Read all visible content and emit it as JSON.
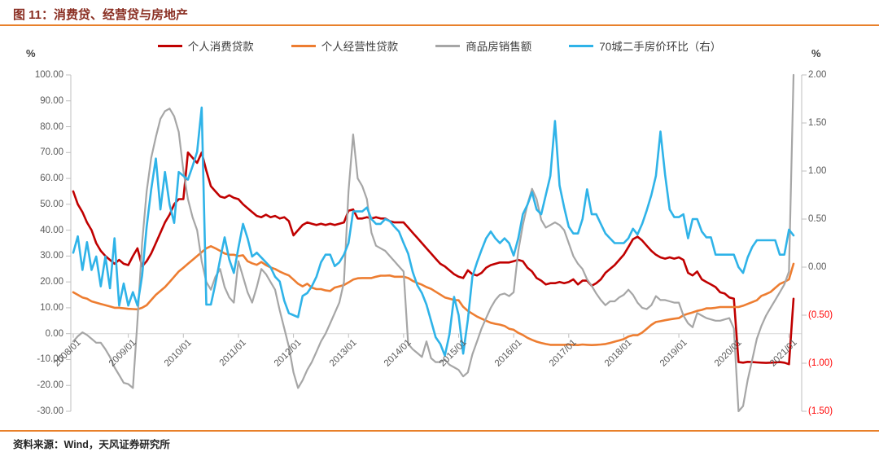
{
  "header": {
    "title": "图 11：消费贷、经营贷与房地产"
  },
  "legend": {
    "items": [
      {
        "id": "consumer-loans",
        "label": "个人消费贷款",
        "color": "#c00000"
      },
      {
        "id": "business-loans",
        "label": "个人经营性贷款",
        "color": "#ed7d31"
      },
      {
        "id": "housing-sales",
        "label": "商品房销售额",
        "color": "#a6a6a6"
      },
      {
        "id": "home-price-mom",
        "label": "70城二手房价环比（右）",
        "color": "#2fb3e8"
      }
    ]
  },
  "axes": {
    "left": {
      "unit": "%",
      "labels": [
        "100.00",
        "90.00",
        "80.00",
        "70.00",
        "60.00",
        "50.00",
        "40.00",
        "30.00",
        "20.00",
        "10.00",
        "0.00",
        "-10.00",
        "-20.00",
        "-30.00"
      ],
      "values": [
        100,
        90,
        80,
        70,
        60,
        50,
        40,
        30,
        20,
        10,
        0,
        -10,
        -20,
        -30
      ]
    },
    "right": {
      "unit": "%",
      "labels": [
        "2.00",
        "1.50",
        "1.00",
        "0.50",
        "0.00",
        "(0.50)",
        "(1.00)",
        "(1.50)"
      ],
      "values": [
        2,
        1.5,
        1,
        0.5,
        0,
        -0.5,
        -1,
        -1.5
      ],
      "negative_color": "#ff0000"
    },
    "x": {
      "labels": [
        "2008/01",
        "2009/01",
        "2010/01",
        "2011/01",
        "2012/01",
        "2013/01",
        "2014/01",
        "2015/01",
        "2016/01",
        "2017/01",
        "2018/01",
        "2019/01",
        "2020/01",
        "2021/01"
      ]
    }
  },
  "footer": {
    "source": "资料来源：Wind，天风证券研究所"
  },
  "chart_data": {
    "type": "line",
    "title": "图 11：消费贷、经营贷与房地产",
    "x_start": "2008/01",
    "x_end": "2021/02",
    "x_freq": "monthly",
    "left_axis": {
      "min": -30,
      "max": 100,
      "step": 10,
      "unit": "%"
    },
    "right_axis": {
      "min": -1.5,
      "max": 2,
      "step": 0.5,
      "unit": "%"
    },
    "grid": "zero-line-only",
    "legend_position": "top",
    "series": [
      {
        "id": "consumer-loans",
        "name": "个人消费贷款",
        "axis": "left",
        "color": "#c00000",
        "width": 2.6,
        "values": [
          55,
          50,
          47,
          43,
          40,
          35,
          32,
          30,
          28.5,
          27,
          28.5,
          27,
          26.5,
          30,
          33,
          26,
          28,
          31,
          35,
          39,
          43,
          46,
          50,
          52,
          52,
          70,
          68,
          66,
          70,
          63,
          57,
          55,
          53,
          52.5,
          53.5,
          52.5,
          52,
          50,
          48.5,
          47,
          45.5,
          45,
          46,
          45,
          45.5,
          44.5,
          45,
          43.5,
          38,
          40,
          42,
          43,
          42.5,
          42,
          42.5,
          42,
          42.5,
          42,
          42.5,
          43,
          47.5,
          48,
          44.5,
          44.5,
          45,
          44.5,
          45,
          44.5,
          44.5,
          43.5,
          43,
          43,
          43,
          41,
          39,
          37,
          35,
          33,
          31,
          29,
          27,
          26,
          24.5,
          23,
          22,
          21.5,
          24.5,
          23,
          22.5,
          23.5,
          25.5,
          26.5,
          27,
          27.5,
          27.5,
          27.5,
          28,
          28.5,
          28,
          25.5,
          24,
          21.5,
          20.5,
          19,
          19.5,
          19.5,
          20,
          19.5,
          20,
          21,
          19,
          20.5,
          20.5,
          18.5,
          19.5,
          21,
          23.5,
          25,
          26.5,
          28.5,
          30.5,
          33.5,
          36.5,
          37.5,
          36,
          34,
          32,
          30.5,
          29.5,
          29,
          29.5,
          29,
          29.5,
          28.5,
          23.5,
          22.5,
          24,
          21,
          20,
          19,
          18,
          16,
          15.5,
          14,
          13.5,
          -11,
          -11.2,
          -10.9,
          -11,
          -11.1,
          -11.2,
          -11.3,
          -11.2,
          -11.1,
          -11,
          -11.2,
          -11.8,
          13.5
        ]
      },
      {
        "id": "business-loans",
        "name": "个人经营性贷款",
        "axis": "left",
        "color": "#ed7d31",
        "width": 2.6,
        "values": [
          16,
          15,
          14,
          13.5,
          12.5,
          12,
          11.5,
          11,
          10.5,
          10,
          10,
          9.8,
          9.6,
          9.5,
          9.4,
          10,
          11,
          13,
          15,
          16.5,
          18,
          20,
          22,
          24,
          25.5,
          27,
          28.5,
          30,
          31.5,
          33,
          33.8,
          33,
          32,
          31,
          30.5,
          30.5,
          30,
          30.3,
          28,
          27.2,
          26.6,
          27.7,
          26.5,
          25.6,
          25,
          24,
          23.2,
          22.5,
          20.9,
          19.3,
          18.3,
          19.3,
          17.8,
          17.2,
          17.2,
          16.7,
          16.5,
          17.8,
          18.3,
          18.8,
          19.8,
          20.9,
          21.4,
          21.5,
          21.5,
          21.5,
          22,
          22.4,
          22.4,
          22.5,
          22,
          22,
          22,
          21.5,
          20.4,
          19.6,
          18.9,
          18,
          17.3,
          16.2,
          15.1,
          14,
          13.5,
          13,
          12.9,
          10.4,
          8.8,
          7.7,
          6.6,
          5.8,
          5,
          4.2,
          3.8,
          3.5,
          3,
          1.9,
          1.5,
          0.3,
          -0.5,
          -1.6,
          -2.4,
          -3.1,
          -3.6,
          -4,
          -4.3,
          -4.3,
          -4.3,
          -4.3,
          -4.2,
          -4.3,
          -4.4,
          -4.2,
          -4.3,
          -4.4,
          -4.3,
          -4.2,
          -4,
          -3.6,
          -3.1,
          -2.6,
          -2.1,
          -1.1,
          -0.6,
          -0.6,
          0.4,
          1.9,
          3.4,
          4.5,
          4.8,
          5.2,
          5.5,
          5.8,
          6,
          7.1,
          7.7,
          8.2,
          8.8,
          9.2,
          9.8,
          9.8,
          10,
          10.3,
          10.3,
          10.3,
          10.3,
          10.3,
          10.8,
          11.5,
          12.2,
          12.9,
          14.6,
          15.3,
          16.1,
          17.7,
          19.2,
          20,
          21,
          27
        ]
      },
      {
        "id": "housing-sales",
        "name": "商品房销售额",
        "axis": "left",
        "color": "#a6a6a6",
        "width": 2.2,
        "values": [
          -3,
          -1,
          0.5,
          -0.5,
          -2,
          -3.5,
          -3.5,
          -6,
          -9,
          -13,
          -16,
          -19,
          -19.5,
          -21,
          5,
          35,
          55,
          68,
          76,
          83,
          86,
          87,
          84,
          78,
          63,
          52,
          45,
          40,
          28,
          20,
          17,
          22,
          25,
          18,
          14,
          12,
          28,
          22,
          16,
          12,
          18,
          25,
          23,
          20,
          17,
          9,
          2,
          -5,
          -15,
          -21,
          -18,
          -14,
          -11,
          -7,
          -3,
          0,
          4,
          8,
          12,
          20,
          55,
          77,
          60,
          57,
          52,
          39,
          34,
          33,
          32,
          30,
          28,
          26,
          24,
          -4,
          -6,
          -7.5,
          -9,
          -3,
          -9.5,
          -11,
          -11,
          -10,
          -12,
          -13,
          -14,
          -16.5,
          -15,
          -8,
          -3,
          2,
          6,
          10,
          13,
          15,
          15.5,
          14.5,
          16,
          32,
          42,
          50,
          56,
          52,
          44,
          41,
          42,
          43,
          42,
          40,
          35,
          30,
          27,
          25,
          21,
          18.5,
          15.5,
          13,
          11,
          12.5,
          12.5,
          14,
          15,
          17,
          15,
          12,
          10,
          9.5,
          11,
          14.5,
          13,
          13,
          12.5,
          12,
          12,
          7,
          4,
          2.5,
          8,
          7,
          6,
          5.5,
          5,
          5,
          5.5,
          6,
          2,
          -30,
          -28,
          -18,
          -10,
          -2,
          3,
          7,
          10,
          13,
          16,
          19,
          24,
          100
        ]
      },
      {
        "id": "home-price-mom",
        "name": "70城二手房价环比（右）",
        "axis": "right",
        "color": "#2fb3e8",
        "width": 2.6,
        "values": [
          0.15,
          0.32,
          -0.03,
          0.26,
          -0.03,
          0.11,
          -0.2,
          0.11,
          -0.22,
          0.3,
          -0.4,
          -0.17,
          -0.4,
          -0.26,
          -0.4,
          -0.09,
          0.42,
          0.81,
          1.13,
          0.6,
          0.99,
          0.65,
          0.46,
          0.99,
          0.95,
          0.91,
          1.05,
          1.2,
          1.66,
          -0.39,
          -0.39,
          -0.17,
          0.08,
          0.31,
          0.08,
          -0.06,
          0.2,
          0.45,
          0.3,
          0.11,
          0.15,
          0.1,
          0.05,
          0,
          -0.1,
          -0.15,
          -0.35,
          -0.48,
          -0.5,
          -0.52,
          -0.3,
          -0.27,
          -0.2,
          -0.1,
          0.05,
          0.13,
          0.13,
          0.01,
          0.05,
          0.13,
          0.25,
          0.58,
          0.58,
          0.58,
          0.62,
          0.5,
          0.45,
          0.45,
          0.5,
          0.48,
          0.42,
          0.37,
          0.25,
          0.14,
          -0.05,
          -0.19,
          -0.27,
          -0.39,
          -0.56,
          -0.73,
          -0.8,
          -0.92,
          -0.7,
          -0.31,
          -0.5,
          -0.9,
          -0.55,
          -0.1,
          0.05,
          0.18,
          0.3,
          0.37,
          0.3,
          0.25,
          0.3,
          0.25,
          0.12,
          0.3,
          0.55,
          0.65,
          0.78,
          0.6,
          0.55,
          0.75,
          0.95,
          1.52,
          0.85,
          0.62,
          0.42,
          0.35,
          0.35,
          0.5,
          0.81,
          0.55,
          0.55,
          0.45,
          0.35,
          0.3,
          0.25,
          0.25,
          0.25,
          0.3,
          0.4,
          0.34,
          0.45,
          0.59,
          0.75,
          0.95,
          1.41,
          0.96,
          0.6,
          0.52,
          0.52,
          0.55,
          0.3,
          0.5,
          0.5,
          0.37,
          0.31,
          0.31,
          0.13,
          0.13,
          0.13,
          0.13,
          0.13,
          0,
          -0.06,
          0.1,
          0.21,
          0.28,
          0.28,
          0.28,
          0.28,
          0.28,
          0.13,
          0.13,
          0.39,
          0.33
        ]
      }
    ]
  }
}
